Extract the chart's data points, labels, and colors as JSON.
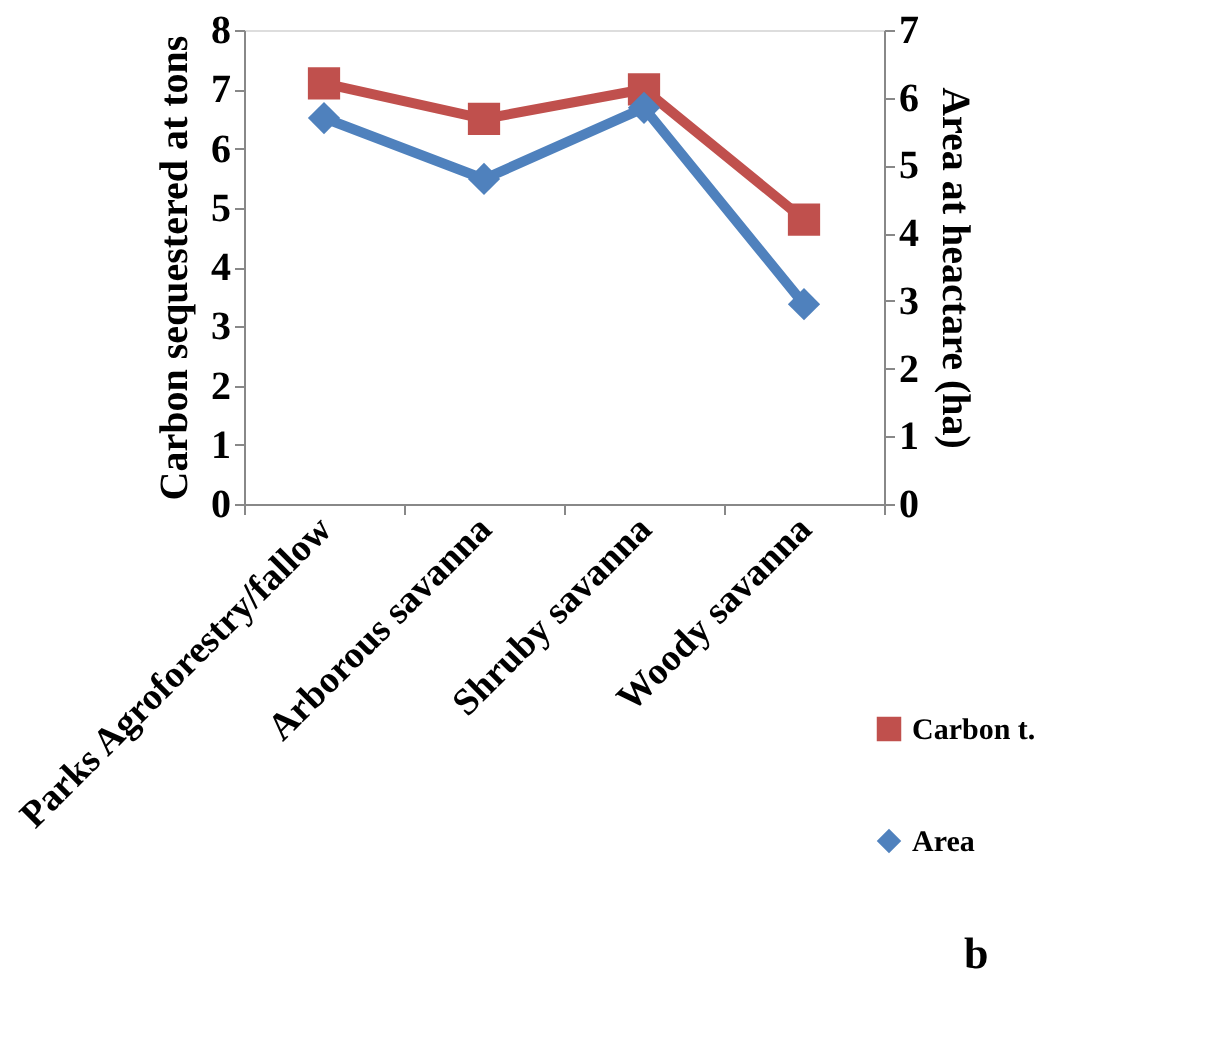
{
  "chart_data": {
    "type": "line",
    "ylabel": "Carbon sequestered at tons",
    "y2label": "Area at heactare (ha)",
    "categories": [
      "Parks Agroforestry/fallow",
      "Arborous savanna",
      "Shruby savanna",
      "Woody savanna"
    ],
    "series": [
      {
        "name": "Carbon t.",
        "color": "#c0504d",
        "marker": "square",
        "values": [
          7.1,
          6.5,
          7.0,
          4.8
        ]
      },
      {
        "name": "Area",
        "color": "#4f81bd",
        "marker": "diamond",
        "axis": "y2",
        "values": [
          5.7,
          4.8,
          5.85,
          2.95
        ]
      }
    ],
    "ylim": [
      0,
      8
    ],
    "yticks": [
      0,
      1,
      2,
      3,
      4,
      5,
      6,
      7,
      8
    ],
    "y2lim": [
      0,
      7
    ],
    "y2ticks": [
      0,
      1,
      2,
      3,
      4,
      5,
      6,
      7
    ],
    "grid": false,
    "legend": "bottom right",
    "annotations": [
      "b"
    ]
  }
}
